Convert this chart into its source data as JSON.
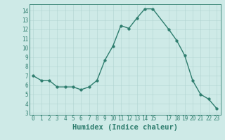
{
  "x": [
    0,
    1,
    2,
    3,
    4,
    5,
    6,
    7,
    8,
    9,
    10,
    11,
    12,
    13,
    14,
    15,
    17,
    18,
    19,
    20,
    21,
    22,
    23
  ],
  "y": [
    7.0,
    6.5,
    6.5,
    5.8,
    5.8,
    5.8,
    5.5,
    5.8,
    6.5,
    8.7,
    10.2,
    12.4,
    12.1,
    13.2,
    14.2,
    14.2,
    12.0,
    10.8,
    9.2,
    6.5,
    5.0,
    4.5,
    3.5
  ],
  "line_color": "#2e7d6e",
  "marker": "o",
  "markersize": 2.5,
  "linewidth": 1.0,
  "bg_color": "#ceeae7",
  "grid_color": "#b0d4d0",
  "xlabel": "Humidex (Indice chaleur)",
  "xlim": [
    -0.5,
    23.5
  ],
  "ylim": [
    2.8,
    14.7
  ],
  "xticks": [
    0,
    1,
    2,
    3,
    4,
    5,
    6,
    7,
    8,
    9,
    10,
    11,
    12,
    13,
    14,
    15,
    17,
    18,
    19,
    20,
    21,
    22,
    23
  ],
  "yticks": [
    3,
    4,
    5,
    6,
    7,
    8,
    9,
    10,
    11,
    12,
    13,
    14
  ],
  "tick_color": "#2e7d6e",
  "tick_fontsize": 5.5,
  "xlabel_fontsize": 7.5,
  "xlabel_color": "#2e7d6e"
}
